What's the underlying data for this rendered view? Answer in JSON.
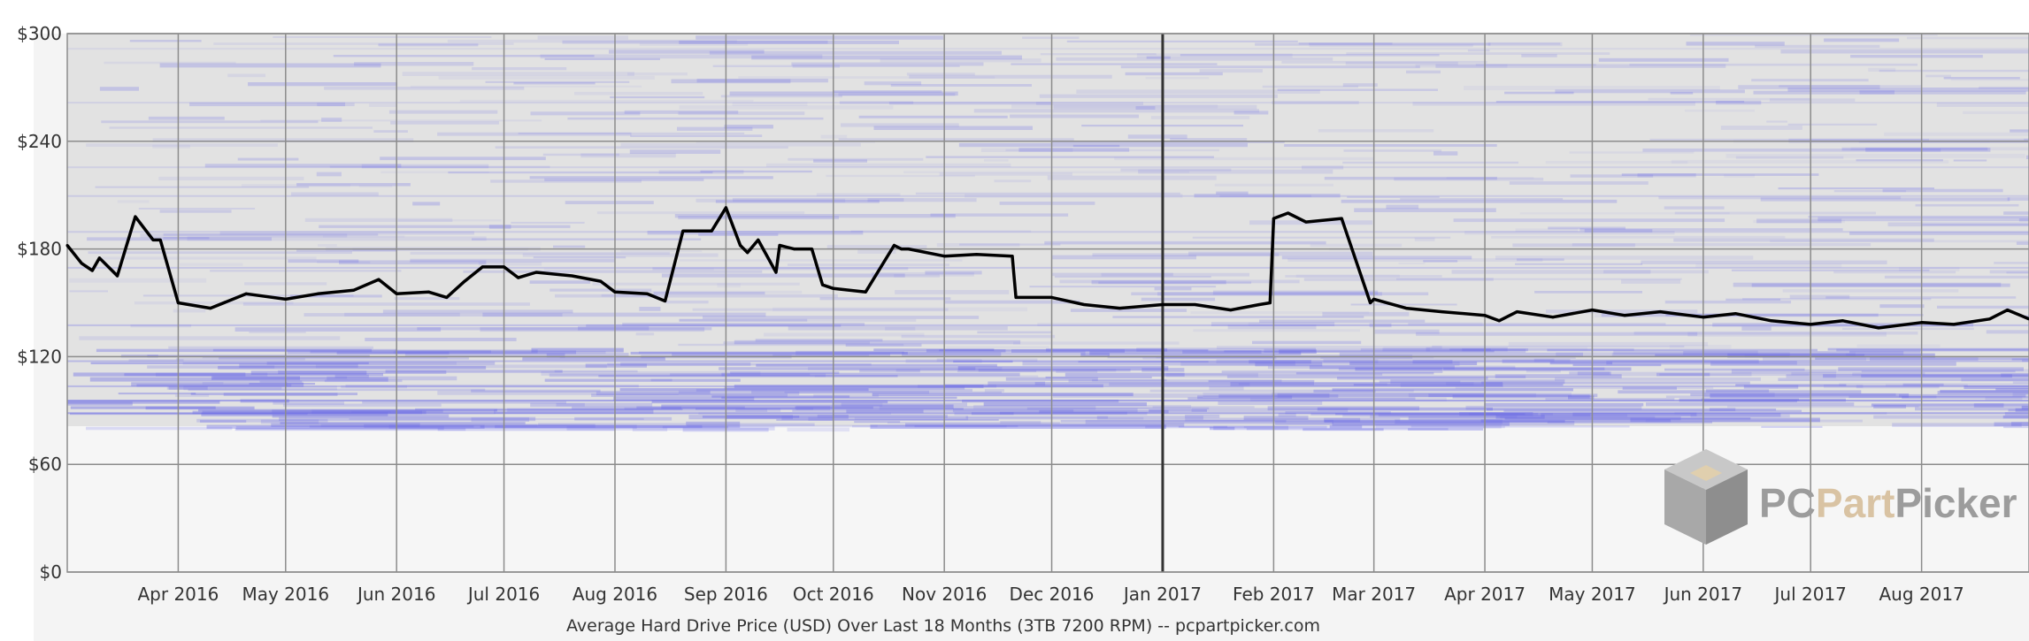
{
  "chart_data": {
    "type": "line",
    "title": "Average Hard Drive Price (USD) Over Last 18 Months (3TB 7200 RPM) -- pcpartpicker.com",
    "xlabel": "",
    "ylabel": "",
    "y_ticks": [
      "$0",
      "$60",
      "$120",
      "$180",
      "$240",
      "$300"
    ],
    "ylim": [
      0,
      300
    ],
    "grid": true,
    "x_tick_labels": [
      "Apr 2016",
      "May 2016",
      "Jun 2016",
      "Jul 2016",
      "Aug 2016",
      "Sep 2016",
      "Oct 2016",
      "Nov 2016",
      "Dec 2016",
      "Jan 2017",
      "Feb 2017",
      "Mar 2017",
      "Apr 2017",
      "May 2017",
      "Jun 2017",
      "Jul 2017",
      "Aug 2017"
    ],
    "series": [
      {
        "x": [
          "2016-03-01",
          "2016-03-05",
          "2016-03-08",
          "2016-03-10",
          "2016-03-15",
          "2016-03-20",
          "2016-03-25",
          "2016-03-27",
          "2016-04-01",
          "2016-04-10",
          "2016-04-20",
          "2016-05-01",
          "2016-05-10",
          "2016-05-20",
          "2016-05-27",
          "2016-06-01",
          "2016-06-10",
          "2016-06-15",
          "2016-06-20",
          "2016-06-25",
          "2016-07-01",
          "2016-07-05",
          "2016-07-10",
          "2016-07-20",
          "2016-07-28",
          "2016-08-01",
          "2016-08-10",
          "2016-08-15",
          "2016-08-20",
          "2016-08-28",
          "2016-09-01",
          "2016-09-05",
          "2016-09-07",
          "2016-09-10",
          "2016-09-15",
          "2016-09-16",
          "2016-09-20",
          "2016-09-25",
          "2016-09-28",
          "2016-10-01",
          "2016-10-10",
          "2016-10-18",
          "2016-10-20",
          "2016-10-22",
          "2016-11-01",
          "2016-11-10",
          "2016-11-20",
          "2016-11-21",
          "2016-12-01",
          "2016-12-10",
          "2016-12-20",
          "2017-01-01",
          "2017-01-10",
          "2017-01-20",
          "2017-01-28",
          "2017-01-31",
          "2017-02-01",
          "2017-02-05",
          "2017-02-10",
          "2017-02-15",
          "2017-02-20",
          "2017-02-28",
          "2017-03-01",
          "2017-03-10",
          "2017-03-20",
          "2017-04-01",
          "2017-04-05",
          "2017-04-10",
          "2017-04-20",
          "2017-05-01",
          "2017-05-10",
          "2017-05-20",
          "2017-06-01",
          "2017-06-10",
          "2017-06-20",
          "2017-07-01",
          "2017-07-10",
          "2017-07-20",
          "2017-08-01",
          "2017-08-10",
          "2017-08-20",
          "2017-08-25",
          "2017-08-31"
        ],
        "y": [
          182,
          172,
          168,
          175,
          165,
          198,
          185,
          185,
          150,
          147,
          155,
          152,
          155,
          157,
          163,
          155,
          156,
          153,
          162,
          170,
          170,
          164,
          167,
          165,
          162,
          156,
          155,
          151,
          190,
          190,
          203,
          182,
          178,
          185,
          167,
          182,
          180,
          180,
          160,
          158,
          156,
          182,
          180,
          180,
          176,
          177,
          176,
          153,
          153,
          149,
          147,
          149,
          149,
          146,
          149,
          150,
          197,
          200,
          195,
          196,
          197,
          150,
          152,
          147,
          145,
          143,
          140,
          145,
          142,
          146,
          143,
          145,
          142,
          144,
          140,
          138,
          140,
          136,
          139,
          138,
          141,
          146,
          141
        ]
      }
    ],
    "watermark": {
      "part1": "PC",
      "part2": "Part",
      "part3": "Picker",
      "colors": [
        "#9c9c9c",
        "#d9c3a3",
        "#9c9c9c"
      ]
    },
    "colors": {
      "plot_bg": "#e2e2e2",
      "grid": "#8c8c8c",
      "band": "#6e6ee6",
      "line": "#000000"
    }
  }
}
